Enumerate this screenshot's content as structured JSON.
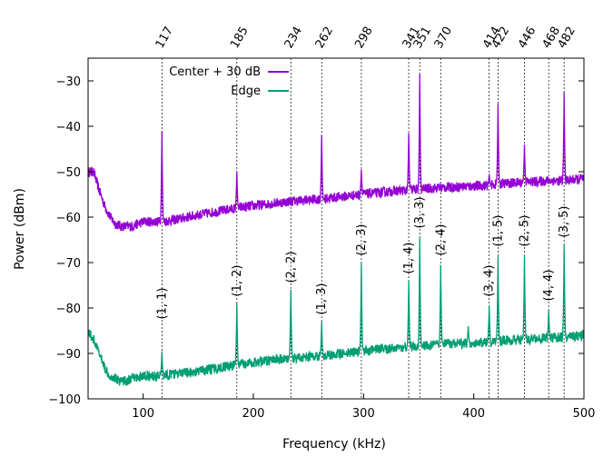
{
  "colors": {
    "center": "#9400d3",
    "edge": "#009e73",
    "axis": "#000000",
    "refline": "#000000"
  },
  "chart_data": {
    "type": "line",
    "xlabel": "Frequency (kHz)",
    "ylabel": "Power (dBm)",
    "xlim": [
      50,
      500
    ],
    "ylim": [
      -100,
      -25
    ],
    "x_ticks": [
      "100",
      "200",
      "300",
      "400",
      "500"
    ],
    "y_ticks": [
      "−100",
      "−90",
      "−80",
      "−70",
      "−60",
      "−50",
      "−40",
      "−30"
    ],
    "x_tick_values": [
      100,
      200,
      300,
      400,
      500
    ],
    "y_tick_values": [
      -100,
      -90,
      -80,
      -70,
      -60,
      -50,
      -40,
      -30
    ],
    "top_ticks": [
      "117",
      "185",
      "234",
      "262",
      "298",
      "341",
      "351",
      "370",
      "414",
      "422",
      "446",
      "468",
      "482"
    ],
    "top_tick_values": [
      117,
      185,
      234,
      262,
      298,
      341,
      351,
      370,
      414,
      422,
      446,
      468,
      482
    ],
    "legend_position": "top-left",
    "series": [
      {
        "name": "Center + 30 dB",
        "baseline": [
          [
            50,
            -50
          ],
          [
            55,
            -50
          ],
          [
            60,
            -54
          ],
          [
            65,
            -57.5
          ],
          [
            70,
            -60
          ],
          [
            75,
            -61.5
          ],
          [
            80,
            -62
          ],
          [
            85,
            -62
          ],
          [
            90,
            -62
          ],
          [
            100,
            -61
          ],
          [
            110,
            -61
          ],
          [
            117,
            -61
          ],
          [
            130,
            -60.5
          ],
          [
            150,
            -59.5
          ],
          [
            185,
            -58
          ],
          [
            200,
            -57.5
          ],
          [
            234,
            -56.5
          ],
          [
            262,
            -56
          ],
          [
            298,
            -55
          ],
          [
            341,
            -54
          ],
          [
            351,
            -53.8
          ],
          [
            370,
            -53.5
          ],
          [
            414,
            -53
          ],
          [
            422,
            -52.7
          ],
          [
            446,
            -52.3
          ],
          [
            468,
            -52
          ],
          [
            482,
            -52
          ],
          [
            500,
            -51.5
          ]
        ],
        "peaks": [
          [
            117,
            -41
          ],
          [
            185,
            -50
          ],
          [
            262,
            -42
          ],
          [
            298,
            -49.5
          ],
          [
            341,
            -41.5
          ],
          [
            351,
            -28.5
          ],
          [
            414,
            -50.5
          ],
          [
            422,
            -35
          ],
          [
            446,
            -44
          ],
          [
            482,
            -32.5
          ]
        ]
      },
      {
        "name": "Edge",
        "baseline": [
          [
            50,
            -85
          ],
          [
            55,
            -87
          ],
          [
            60,
            -90
          ],
          [
            65,
            -93
          ],
          [
            70,
            -95
          ],
          [
            75,
            -95.5
          ],
          [
            80,
            -96
          ],
          [
            85,
            -96
          ],
          [
            90,
            -95.5
          ],
          [
            100,
            -95
          ],
          [
            110,
            -95
          ],
          [
            117,
            -95
          ],
          [
            130,
            -94.5
          ],
          [
            150,
            -94
          ],
          [
            185,
            -92.5
          ],
          [
            200,
            -92
          ],
          [
            234,
            -91
          ],
          [
            262,
            -90.5
          ],
          [
            298,
            -89.5
          ],
          [
            341,
            -88.5
          ],
          [
            351,
            -88.5
          ],
          [
            370,
            -88
          ],
          [
            414,
            -87.5
          ],
          [
            422,
            -87.2
          ],
          [
            446,
            -87
          ],
          [
            468,
            -86.5
          ],
          [
            482,
            -86.5
          ],
          [
            500,
            -86
          ]
        ],
        "peaks": [
          [
            117,
            -89.5
          ],
          [
            185,
            -79
          ],
          [
            234,
            -76
          ],
          [
            262,
            -83
          ],
          [
            298,
            -70
          ],
          [
            341,
            -74
          ],
          [
            351,
            -64.5
          ],
          [
            370,
            -70.5
          ],
          [
            395,
            -84
          ],
          [
            414,
            -79.5
          ],
          [
            422,
            -68.5
          ],
          [
            446,
            -68.5
          ],
          [
            468,
            -80.5
          ],
          [
            482,
            -66
          ]
        ]
      }
    ],
    "mode_labels": [
      {
        "text": "(1, 1)",
        "x": 117,
        "y": -79
      },
      {
        "text": "(1, 2)",
        "x": 185,
        "y": -74
      },
      {
        "text": "(2, 2)",
        "x": 234,
        "y": -71
      },
      {
        "text": "(1, 3)",
        "x": 262,
        "y": -78
      },
      {
        "text": "(2, 3)",
        "x": 298,
        "y": -65
      },
      {
        "text": "(1, 4)",
        "x": 341,
        "y": -69
      },
      {
        "text": "(3, 3)",
        "x": 351,
        "y": -59
      },
      {
        "text": "(2, 4)",
        "x": 370,
        "y": -65
      },
      {
        "text": "(3, 4)",
        "x": 414,
        "y": -74
      },
      {
        "text": "(1, 5)",
        "x": 422,
        "y": -63
      },
      {
        "text": "(2, 5)",
        "x": 446,
        "y": -63
      },
      {
        "text": "(4, 4)",
        "x": 468,
        "y": -75
      },
      {
        "text": "(3, 5)",
        "x": 482,
        "y": -61
      }
    ]
  }
}
